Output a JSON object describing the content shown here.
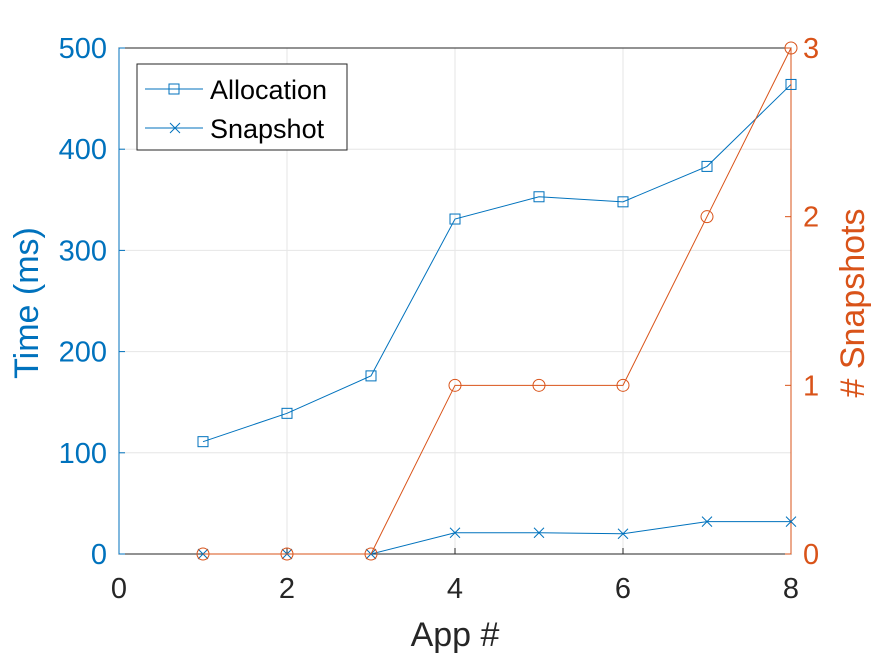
{
  "chart_data": {
    "type": "line",
    "xlabel": "App #",
    "ylabel_left": "Time (ms)",
    "ylabel_right": "# Snapshots",
    "xlim": [
      0,
      8
    ],
    "ylim_left": [
      0,
      500
    ],
    "ylim_right": [
      0,
      3
    ],
    "x_ticks": [
      0,
      2,
      4,
      6,
      8
    ],
    "y_ticks_left": [
      0,
      100,
      200,
      300,
      400,
      500
    ],
    "y_ticks_right": [
      0,
      1,
      2,
      3
    ],
    "grid": true,
    "legend_position": "top-left",
    "colors": {
      "left_axis": "#0072BD",
      "right_axis": "#D95319",
      "grid": "#E6E6E6",
      "axis": "#262626"
    },
    "series": [
      {
        "name": "Allocation",
        "axis": "left",
        "marker": "square",
        "color": "#0072BD",
        "x": [
          1,
          2,
          3,
          4,
          5,
          6,
          7,
          8
        ],
        "values": [
          111,
          139,
          176,
          331,
          353,
          348,
          383,
          464
        ]
      },
      {
        "name": "Snapshot",
        "axis": "left",
        "marker": "x",
        "color": "#0072BD",
        "x": [
          1,
          2,
          3,
          4,
          5,
          6,
          7,
          8
        ],
        "values": [
          0,
          0,
          0,
          21,
          21,
          20,
          32,
          32
        ]
      },
      {
        "axis": "right",
        "marker": "circle",
        "color": "#D95319",
        "x": [
          1,
          2,
          3,
          4,
          5,
          6,
          7,
          8
        ],
        "values": [
          0,
          0,
          0,
          1,
          1,
          1,
          2,
          3
        ]
      }
    ]
  }
}
